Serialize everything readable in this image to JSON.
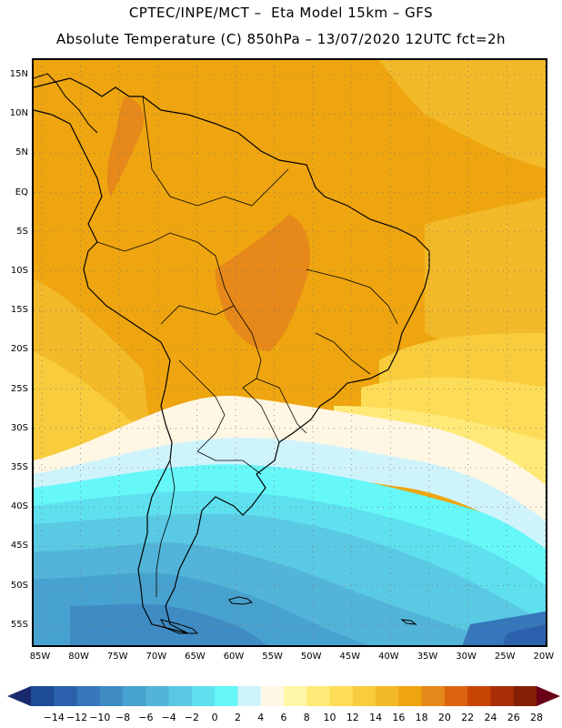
{
  "title_line1": "CPTEC/INPE/MCT –  Eta Model 15km – GFS",
  "title_line2": "Absolute Temperature (C) 850hPa – 13/07/2020 12UTC fct=2h",
  "lat_labels": [
    "15N",
    "10N",
    "5N",
    "EQ",
    "5S",
    "10S",
    "15S",
    "20S",
    "25S",
    "30S",
    "35S",
    "40S",
    "45S",
    "50S",
    "55S"
  ],
  "lon_labels": [
    "85W",
    "80W",
    "75W",
    "70W",
    "65W",
    "60W",
    "55W",
    "50W",
    "45W",
    "40W",
    "35W",
    "30W",
    "25W",
    "20W"
  ],
  "colorbar": {
    "labels": [
      "-14",
      "-12",
      "-10",
      "-8",
      "-6",
      "-4",
      "-2",
      "0",
      "2",
      "4",
      "6",
      "8",
      "10",
      "12",
      "14",
      "16",
      "18",
      "20",
      "22",
      "24",
      "26",
      "28"
    ],
    "colors": [
      "#1e4b98",
      "#2b61ac",
      "#3577ba",
      "#3f8cc4",
      "#48a2cf",
      "#52b4d9",
      "#5ac9e3",
      "#5ee0ee",
      "#66f7f9",
      "#cff3fb",
      "#fff7e3",
      "#fff6a8",
      "#ffea78",
      "#fddc58",
      "#f8cc3c",
      "#f2b929",
      "#eea50f",
      "#e6881a",
      "#dc6410",
      "#c74405",
      "#a82e05",
      "#842005"
    ],
    "low_arrow_color": "#1b2a6e",
    "high_arrow_color": "#6a0018"
  },
  "grid_on": true
}
